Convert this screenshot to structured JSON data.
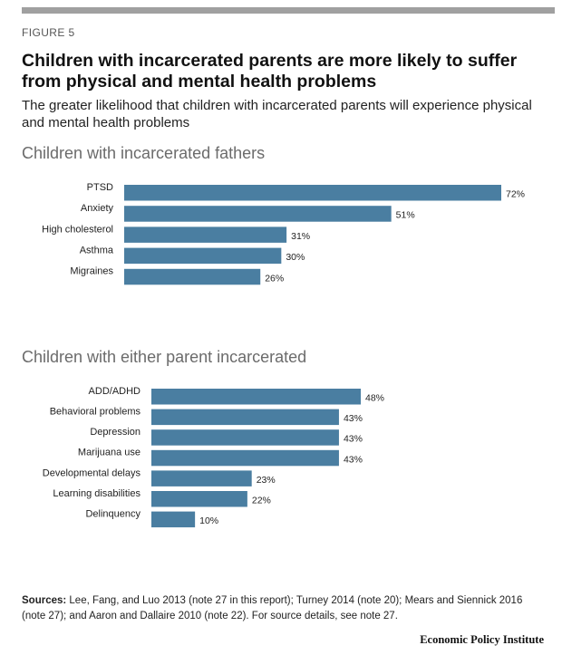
{
  "figure_label": "FIGURE 5",
  "title": "Children with incarcerated parents are more likely to suffer from physical and mental health problems",
  "subtitle": "The greater likelihood that children with incarcerated parents will experience physical and mental health problems",
  "colors": {
    "bar": "#4a7ea1",
    "rule": "#a0a0a0"
  },
  "chart_data": [
    {
      "type": "bar",
      "orientation": "horizontal",
      "title": "Children with incarcerated fathers",
      "categories": [
        "PTSD",
        "Anxiety",
        "High cholesterol",
        "Asthma",
        "Migraines"
      ],
      "values": [
        72,
        51,
        31,
        30,
        26
      ],
      "value_labels": [
        "72%",
        "51%",
        "31%",
        "30%",
        "26%"
      ],
      "unit": "%",
      "xlim": [
        0,
        72
      ],
      "grid": false
    },
    {
      "type": "bar",
      "orientation": "horizontal",
      "title": "Children with either parent incarcerated",
      "categories": [
        "ADD/ADHD",
        "Behavioral problems",
        "Depression",
        "Marijuana use",
        "Developmental delays",
        "Learning disabilities",
        "Delinquency"
      ],
      "values": [
        48,
        43,
        43,
        43,
        23,
        22,
        10
      ],
      "value_labels": [
        "48%",
        "43%",
        "43%",
        "43%",
        "23%",
        "22%",
        "10%"
      ],
      "unit": "%",
      "xlim": [
        0,
        48
      ],
      "grid": false
    }
  ],
  "sources": {
    "label": "Sources:",
    "text": " Lee, Fang, and Luo 2013 (note 27 in this report); Turney 2014 (note 20); Mears and Siennick 2016 (note 27); and Aaron and Dallaire 2010 (note 22). For source details, see note 27."
  },
  "credit": "Economic Policy Institute"
}
